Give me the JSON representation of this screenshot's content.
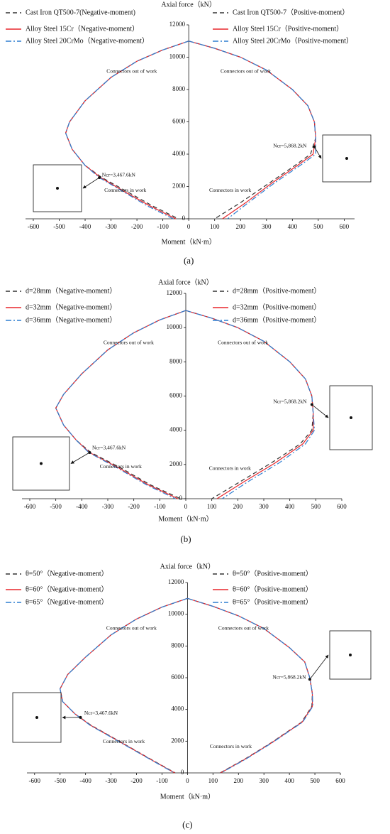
{
  "charts": [
    {
      "chart_data": {
        "type": "line",
        "y_label": "Axial force（kN）",
        "x_label": "Moment（kN·m）",
        "panel": "(a)",
        "xlim": [
          -630,
          640
        ],
        "ylim": [
          0,
          12000
        ],
        "xticks": [
          -600,
          -500,
          -400,
          -300,
          -200,
          -100,
          0,
          100,
          200,
          300,
          400,
          500,
          600
        ],
        "yticks": [
          0,
          2000,
          4000,
          6000,
          8000,
          10000,
          12000
        ],
        "annotations": [
          "Connectors out of work",
          "Connectors out of work",
          "Connectors in work",
          "Connectors in work",
          "Ncr=3,467.6kN",
          "Ncr=5,868.2kN"
        ],
        "series": [
          {
            "name": "Cast Iron QT500-7(Negative-moment)",
            "color": "#333333",
            "style": "dashed",
            "x": [
              0,
              -100,
              -200,
              -300,
              -400,
              -460,
              -475,
              -450,
              -400,
              -335,
              -240,
              -140,
              -40
            ],
            "values": [
              11000,
              10450,
              9750,
              8750,
              7300,
              6000,
              5300,
              4300,
              3300,
              2550,
              1700,
              800,
              0
            ]
          },
          {
            "name": "Alloy Steel 15Cr（Negative-moment）",
            "color": "#e8262b",
            "style": "solid",
            "x": [
              0,
              -100,
              -200,
              -300,
              -400,
              -460,
              -475,
              -450,
              -400,
              -340,
              -250,
              -150,
              -50
            ],
            "values": [
              11000,
              10450,
              9750,
              8750,
              7300,
              6000,
              5300,
              4300,
              3300,
              2550,
              1700,
              800,
              0
            ]
          },
          {
            "name": "Alloy Steel 20CrMo（Negative-moment）",
            "color": "#2f7fd1",
            "style": "dashdot",
            "x": [
              0,
              -100,
              -200,
              -300,
              -400,
              -460,
              -475,
              -450,
              -400,
              -345,
              -255,
              -160,
              -60
            ],
            "values": [
              11000,
              10450,
              9750,
              8750,
              7300,
              6000,
              5300,
              4300,
              3300,
              2550,
              1700,
              800,
              0
            ]
          },
          {
            "name": "Cast Iron QT500-7（Positive-moment）",
            "color": "#333333",
            "style": "dashed",
            "x": [
              0,
              100,
              200,
              300,
              400,
              460,
              485,
              490,
              470,
              410,
              310,
              200,
              100
            ],
            "values": [
              11000,
              10550,
              10000,
              9200,
              8000,
              7000,
              6000,
              5000,
              4000,
              3300,
              2200,
              1000,
              0
            ]
          },
          {
            "name": "Alloy Steel 15Cr（Positive-moment）",
            "color": "#e8262b",
            "style": "solid",
            "x": [
              0,
              100,
              200,
              300,
              400,
              460,
              485,
              490,
              480,
              420,
              320,
              220,
              130
            ],
            "values": [
              11000,
              10550,
              10000,
              9200,
              8000,
              7000,
              6000,
              5000,
              4000,
              3300,
              2200,
              1000,
              0
            ]
          },
          {
            "name": "Alloy Steel 20CrMo（Positive-moment）",
            "color": "#2f7fd1",
            "style": "dashdot",
            "x": [
              0,
              100,
              200,
              300,
              400,
              460,
              485,
              490,
              490,
              430,
              330,
              230,
              150
            ],
            "values": [
              11000,
              10550,
              10000,
              9200,
              8000,
              7000,
              6000,
              5000,
              4000,
              3300,
              2200,
              1000,
              0
            ]
          }
        ]
      }
    },
    {
      "chart_data": {
        "type": "line",
        "y_label": "Axial force（kN）",
        "x_label": "Moment（kN·m）",
        "panel": "(b)",
        "xlim": [
          -630,
          600
        ],
        "ylim": [
          0,
          12000
        ],
        "xticks": [
          -600,
          -500,
          -400,
          -300,
          -200,
          -100,
          0,
          100,
          200,
          300,
          400,
          500,
          600
        ],
        "yticks": [
          0,
          2000,
          4000,
          6000,
          8000,
          10000,
          12000
        ],
        "annotations": [
          "Connectors out of work",
          "Connectors out of work",
          "Connectors in work",
          "Connectors in work",
          "Ncr=3,467.6kN",
          "Ncr=5,868.2kN"
        ],
        "series": [
          {
            "name": "d=28mm（Negative-moment）",
            "color": "#333333",
            "style": "dashed",
            "x": [
              0,
              -100,
              -200,
              -300,
              -400,
              -470,
              -500,
              -470,
              -420,
              -365,
              -250,
              -135,
              -20
            ],
            "values": [
              11000,
              10450,
              9700,
              8700,
              7300,
              6100,
              5300,
              4300,
              3400,
              2700,
              1800,
              800,
              0
            ]
          },
          {
            "name": "d=32mm（Negative-moment）",
            "color": "#e8262b",
            "style": "solid",
            "x": [
              0,
              -100,
              -200,
              -300,
              -400,
              -470,
              -500,
              -470,
              -420,
              -370,
              -258,
              -143,
              -30
            ],
            "values": [
              11000,
              10450,
              9700,
              8700,
              7300,
              6100,
              5300,
              4300,
              3400,
              2700,
              1800,
              800,
              0
            ]
          },
          {
            "name": "d=36mm（Negative-moment）",
            "color": "#2f7fd1",
            "style": "dashdot",
            "x": [
              0,
              -100,
              -200,
              -300,
              -400,
              -470,
              -500,
              -470,
              -420,
              -373,
              -264,
              -150,
              -40
            ],
            "values": [
              11000,
              10450,
              9700,
              8700,
              7300,
              6100,
              5300,
              4300,
              3400,
              2700,
              1800,
              800,
              0
            ]
          },
          {
            "name": "d=28mm（Positive-moment）",
            "color": "#333333",
            "style": "dashed",
            "x": [
              0,
              100,
              200,
              300,
              400,
              460,
              485,
              490,
              485,
              440,
              330,
              210,
              100
            ],
            "values": [
              11000,
              10550,
              10000,
              9200,
              8000,
              7000,
              6000,
              5000,
              4000,
              3200,
              2100,
              1000,
              0
            ]
          },
          {
            "name": "d=32mm（Positive-moment）",
            "color": "#e8262b",
            "style": "solid",
            "x": [
              0,
              100,
              200,
              300,
              400,
              460,
              485,
              490,
              490,
              450,
              345,
              225,
              120
            ],
            "values": [
              11000,
              10550,
              10000,
              9200,
              8000,
              7000,
              6000,
              5000,
              4000,
              3200,
              2100,
              1000,
              0
            ]
          },
          {
            "name": "d=36mm（Positive-moment）",
            "color": "#2f7fd1",
            "style": "dashdot",
            "x": [
              0,
              100,
              200,
              300,
              400,
              460,
              485,
              490,
              495,
              460,
              360,
              240,
              140
            ],
            "values": [
              11000,
              10550,
              10000,
              9200,
              8000,
              7000,
              6000,
              5000,
              4000,
              3200,
              2100,
              1000,
              0
            ]
          }
        ]
      }
    },
    {
      "chart_data": {
        "type": "line",
        "y_label": "Axial force（kN）",
        "x_label": "Moment（kN·m）",
        "panel": "(c)",
        "xlim": [
          -630,
          600
        ],
        "ylim": [
          0,
          12000
        ],
        "xticks": [
          -600,
          -500,
          -400,
          -300,
          -200,
          -100,
          0,
          100,
          200,
          300,
          400,
          500,
          600
        ],
        "yticks": [
          0,
          2000,
          4000,
          6000,
          8000,
          10000,
          12000
        ],
        "annotations": [
          "Connectors out of work",
          "Connectors out of work",
          "Connectors in work",
          "Connectors in work",
          "Ncr=3,467.6kN",
          "Ncr=5,868.2kN"
        ],
        "series": [
          {
            "name": "θ=50°（Negative-moment）",
            "color": "#333333",
            "style": "dashed",
            "x": [
              0,
              -100,
              -200,
              -300,
              -400,
              -470,
              -500,
              -490,
              -440,
              -378,
              -268,
              -148,
              -48
            ],
            "values": [
              11000,
              10450,
              9700,
              8700,
              7300,
              6200,
              5300,
              4500,
              3700,
              3000,
              2000,
              900,
              0
            ]
          },
          {
            "name": "θ=60°（Negative-moment）",
            "color": "#e8262b",
            "style": "solid",
            "x": [
              0,
              -100,
              -200,
              -300,
              -400,
              -470,
              -500,
              -490,
              -440,
              -380,
              -270,
              -150,
              -50
            ],
            "values": [
              11000,
              10450,
              9700,
              8700,
              7300,
              6200,
              5300,
              4500,
              3700,
              3000,
              2000,
              900,
              0
            ]
          },
          {
            "name": "θ=65°（Negative-moment）",
            "color": "#2f7fd1",
            "style": "dashdot",
            "x": [
              0,
              -100,
              -200,
              -300,
              -400,
              -470,
              -500,
              -490,
              -440,
              -382,
              -272,
              -152,
              -52
            ],
            "values": [
              11000,
              10450,
              9700,
              8700,
              7300,
              6200,
              5300,
              4500,
              3700,
              3000,
              2000,
              900,
              0
            ]
          },
          {
            "name": "θ=50°（Positive-moment）",
            "color": "#333333",
            "style": "dashed",
            "x": [
              0,
              100,
              200,
              300,
              400,
              460,
              480,
              490,
              488,
              448,
              328,
              228,
              128
            ],
            "values": [
              11000,
              10500,
              9900,
              9100,
              7900,
              7000,
              6000,
              5000,
              4200,
              3200,
              1900,
              900,
              0
            ]
          },
          {
            "name": "θ=60°（Positive-moment）",
            "color": "#e8262b",
            "style": "solid",
            "x": [
              0,
              100,
              200,
              300,
              400,
              460,
              480,
              490,
              490,
              450,
              330,
              230,
              130
            ],
            "values": [
              11000,
              10500,
              9900,
              9100,
              7900,
              7000,
              6000,
              5000,
              4200,
              3200,
              1900,
              900,
              0
            ]
          },
          {
            "name": "θ=65°（Positive-moment）",
            "color": "#2f7fd1",
            "style": "dashdot",
            "x": [
              0,
              100,
              200,
              300,
              400,
              460,
              480,
              490,
              492,
              452,
              332,
              232,
              132
            ],
            "values": [
              11000,
              10500,
              9900,
              9100,
              7900,
              7000,
              6000,
              5000,
              4200,
              3200,
              1900,
              900,
              0
            ]
          }
        ]
      }
    }
  ]
}
